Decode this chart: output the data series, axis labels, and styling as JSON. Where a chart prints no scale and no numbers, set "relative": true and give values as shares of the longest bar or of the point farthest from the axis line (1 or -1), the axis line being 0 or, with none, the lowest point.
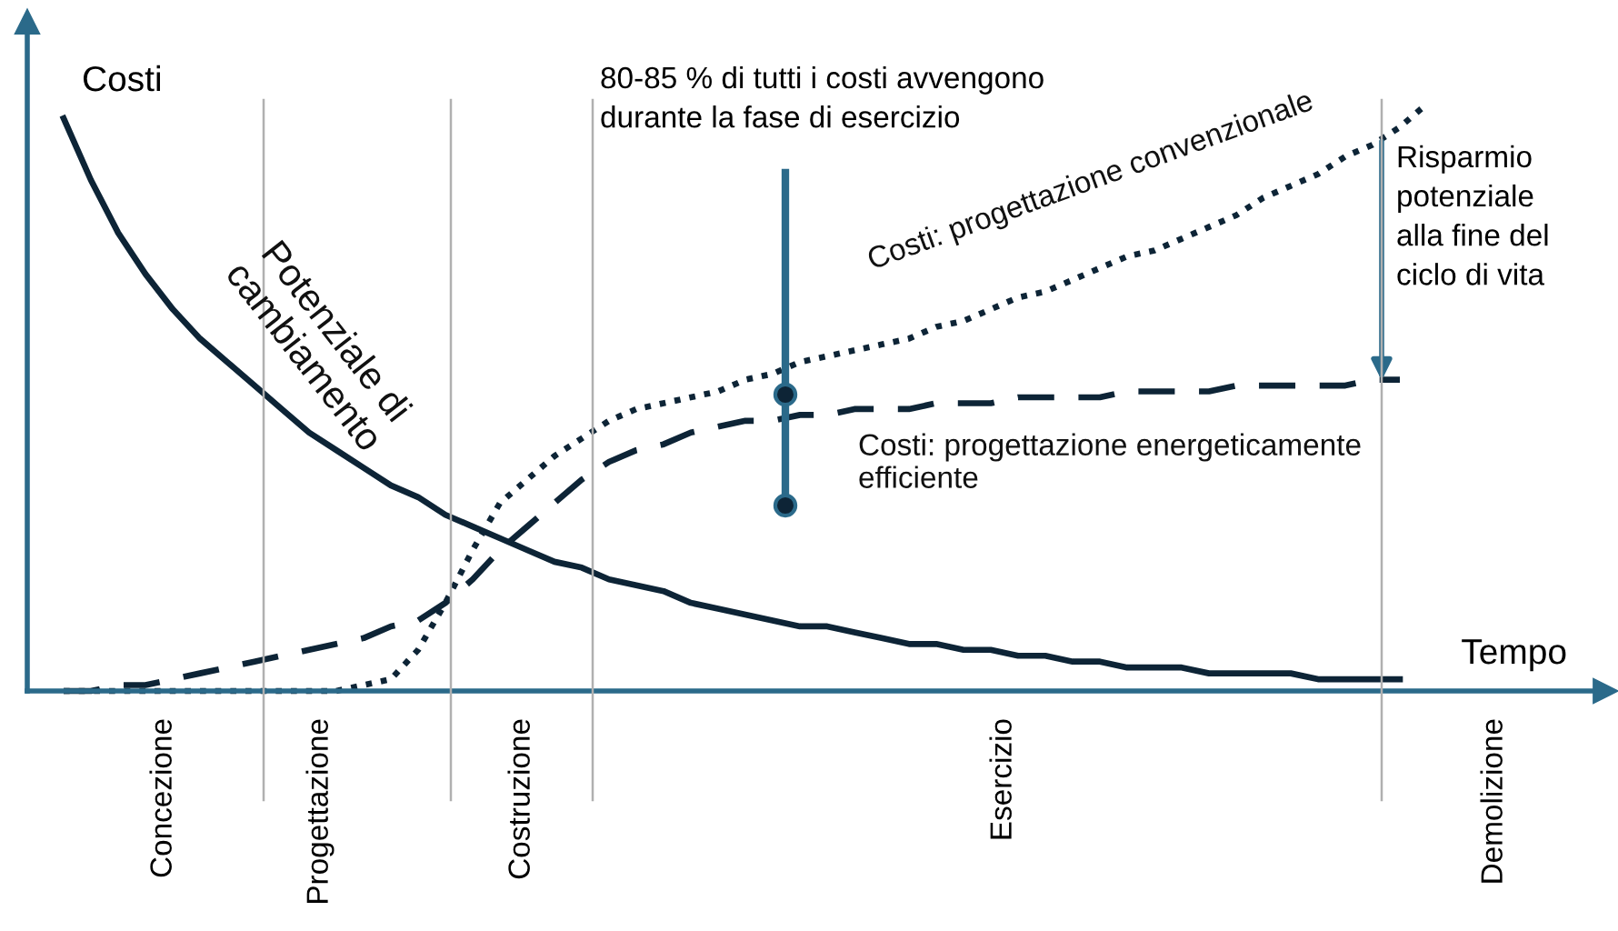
{
  "chart_data": {
    "type": "line",
    "relative": true,
    "xlabel": "Tempo",
    "ylabel": "Costi",
    "categories": [
      null,
      null,
      null,
      null,
      null,
      null,
      null,
      null,
      null,
      null,
      null,
      null,
      null,
      null,
      null,
      null,
      null,
      null,
      null,
      null,
      null,
      null,
      null,
      null,
      null,
      null,
      null,
      null,
      null,
      null,
      null,
      null,
      null,
      null,
      null,
      null,
      null,
      null,
      null,
      null,
      null,
      null,
      null,
      null,
      null,
      null,
      null,
      null,
      null,
      null,
      null
    ],
    "series": [
      {
        "name": "Potenziale di\ncambiamento",
        "color": "#0d2436",
        "line_style": "solid",
        "values": [
          0.975,
          0.87,
          0.78,
          0.71,
          0.65,
          0.6,
          0.56,
          0.52,
          0.48,
          0.44,
          0.41,
          0.38,
          0.35,
          0.33,
          0.3,
          0.28,
          0.26,
          0.24,
          0.22,
          0.21,
          0.19,
          0.18,
          0.17,
          0.15,
          0.14,
          0.13,
          0.12,
          0.11,
          0.11,
          0.1,
          0.09,
          0.08,
          0.08,
          0.07,
          0.07,
          0.06,
          0.06,
          0.05,
          0.05,
          0.04,
          0.04,
          0.04,
          0.03,
          0.03,
          0.03,
          0.03,
          0.02,
          0.02,
          0.02,
          0.02,
          null
        ]
      },
      {
        "name": "Costi: progettazione convenzionale",
        "color": "#0d2436",
        "line_style": "dotted",
        "values": [
          0,
          0,
          0,
          0,
          0,
          0,
          0,
          0,
          0,
          0,
          0,
          0.01,
          0.02,
          0.07,
          0.15,
          0.24,
          0.32,
          0.36,
          0.4,
          0.43,
          0.46,
          0.48,
          0.49,
          0.5,
          0.51,
          0.53,
          0.54,
          0.56,
          0.57,
          0.58,
          0.59,
          0.6,
          0.62,
          0.63,
          0.65,
          0.67,
          0.68,
          0.7,
          0.72,
          0.74,
          0.75,
          0.77,
          0.79,
          0.81,
          0.84,
          0.86,
          0.88,
          0.91,
          0.93,
          0.96,
          1.0
        ]
      },
      {
        "name": "Costi: progettazione energeticamente\nefficiente",
        "color": "#0d2436",
        "line_style": "dashed",
        "values": [
          0,
          0,
          0.01,
          0.01,
          0.02,
          0.03,
          0.04,
          0.05,
          0.06,
          0.07,
          0.08,
          0.09,
          0.11,
          0.12,
          0.15,
          0.19,
          0.24,
          0.28,
          0.32,
          0.36,
          0.39,
          0.41,
          0.42,
          0.44,
          0.45,
          0.46,
          0.46,
          0.47,
          0.47,
          0.48,
          0.48,
          0.48,
          0.49,
          0.49,
          0.49,
          0.5,
          0.5,
          0.5,
          0.5,
          0.51,
          0.51,
          0.51,
          0.51,
          0.52,
          0.52,
          0.52,
          0.52,
          0.52,
          0.53,
          0.53,
          null
        ]
      }
    ],
    "annotations": [
      "80-85 % di tutti i costi avvengono\ndurante la fase di esercizio",
      "Risparmio\npotenziale\nalla fine del\nciclo di vita",
      "Concezione",
      "Progettazione",
      "Costruzione",
      "Esercizio",
      "Demolizione"
    ]
  }
}
